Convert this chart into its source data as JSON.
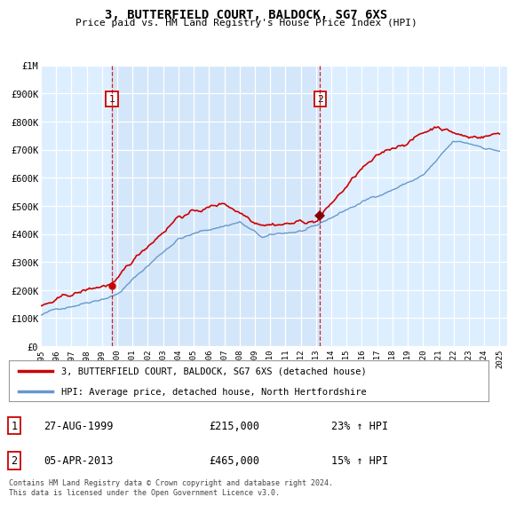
{
  "title": "3, BUTTERFIELD COURT, BALDOCK, SG7 6XS",
  "subtitle": "Price paid vs. HM Land Registry's House Price Index (HPI)",
  "legend_line1": "3, BUTTERFIELD COURT, BALDOCK, SG7 6XS (detached house)",
  "legend_line2": "HPI: Average price, detached house, North Hertfordshire",
  "footnote": "Contains HM Land Registry data © Crown copyright and database right 2024.\nThis data is licensed under the Open Government Licence v3.0.",
  "sale1_date": "27-AUG-1999",
  "sale1_price": 215000,
  "sale1_label": "23% ↑ HPI",
  "sale2_date": "05-APR-2013",
  "sale2_price": 465000,
  "sale2_label": "15% ↑ HPI",
  "sale1_x": 1999.65,
  "sale2_x": 2013.27,
  "red_color": "#cc0000",
  "blue_color": "#6699cc",
  "plot_bg": "#ddeeff",
  "highlight_bg": "#cce0f5",
  "ylim": [
    0,
    1000000
  ],
  "xlim": [
    1995,
    2025.5
  ],
  "yticks": [
    0,
    100000,
    200000,
    300000,
    400000,
    500000,
    600000,
    700000,
    800000,
    900000,
    1000000
  ],
  "ytick_labels": [
    "£0",
    "£100K",
    "£200K",
    "£300K",
    "£400K",
    "£500K",
    "£600K",
    "£700K",
    "£800K",
    "£900K",
    "£1M"
  ],
  "xticks": [
    1995,
    1996,
    1997,
    1998,
    1999,
    2000,
    2001,
    2002,
    2003,
    2004,
    2005,
    2006,
    2007,
    2008,
    2009,
    2010,
    2011,
    2012,
    2013,
    2014,
    2015,
    2016,
    2017,
    2018,
    2019,
    2020,
    2021,
    2022,
    2023,
    2024,
    2025
  ]
}
